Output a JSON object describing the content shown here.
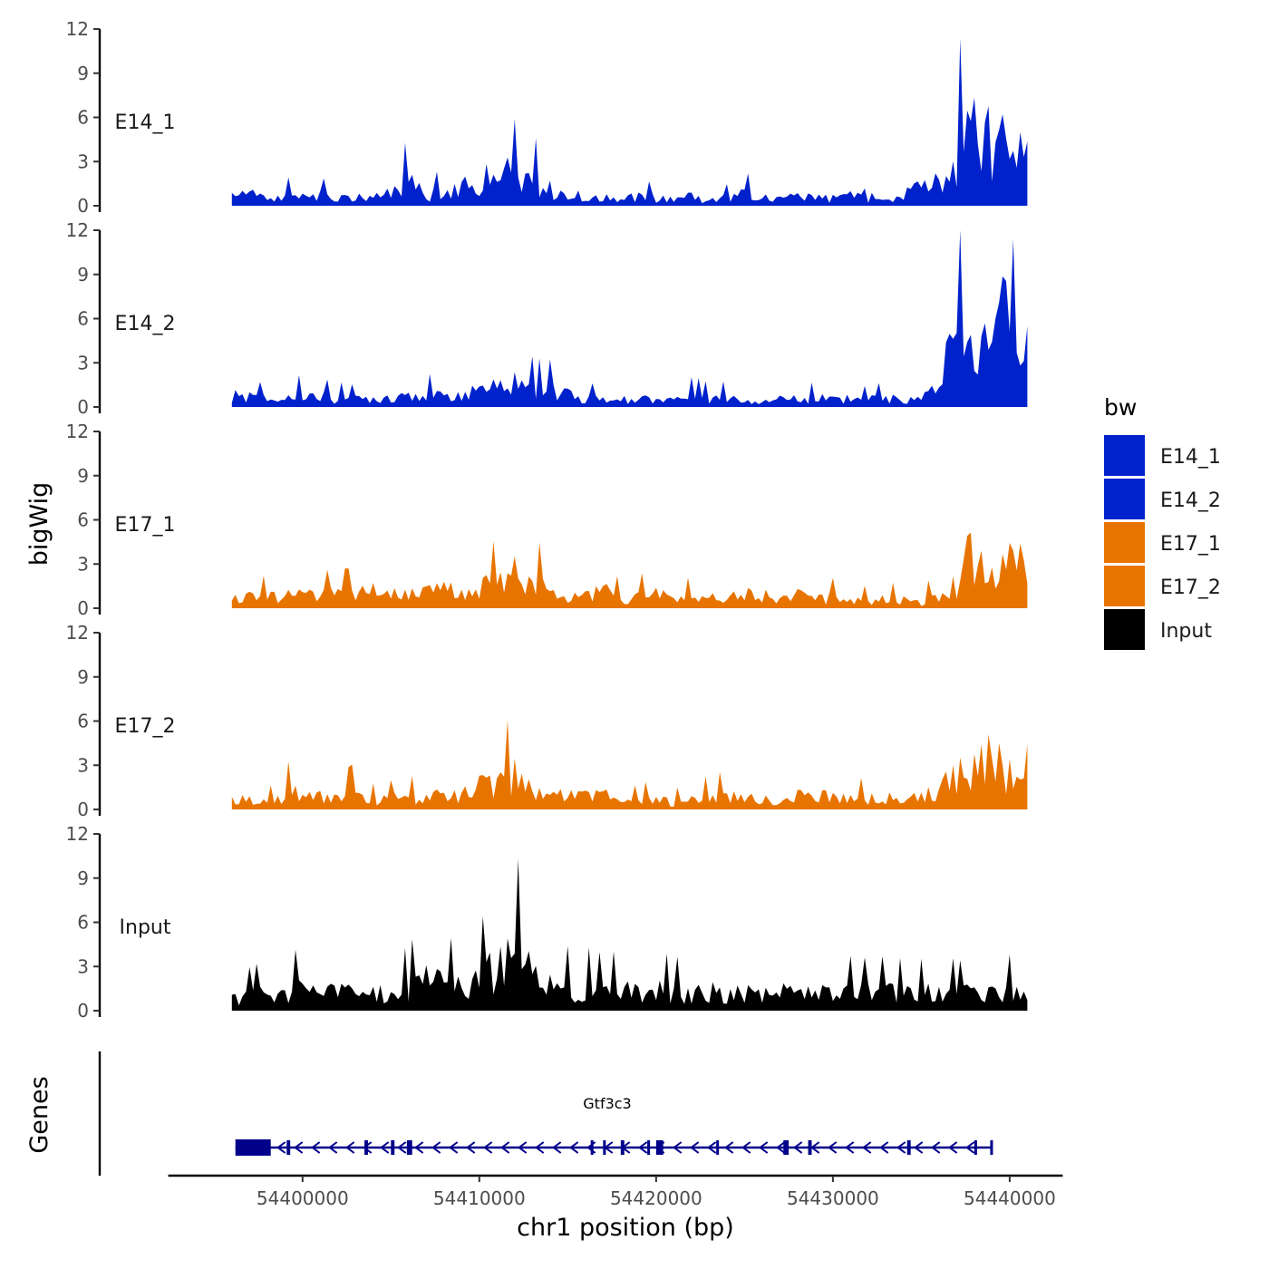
{
  "chart_data": {
    "type": "area",
    "xlabel": "chr1 position (bp)",
    "ylabel": "bigWig",
    "xlim": [
      54392400,
      54443000
    ],
    "x_ticks": [
      "54400000",
      "54410000",
      "54420000",
      "54430000",
      "54440000"
    ],
    "ylim": [
      0,
      12
    ],
    "y_ticks": [
      "0",
      "3",
      "6",
      "9",
      "12"
    ],
    "legend_title": "bw",
    "tracks": [
      {
        "name": "E14_1",
        "color": "#0022CC",
        "x": [
          54396000,
          54397000,
          54398000,
          54399000,
          54400000,
          54401000,
          54402000,
          54403000,
          54404000,
          54405000,
          54406000,
          54407000,
          54408000,
          54409000,
          54410000,
          54411000,
          54412000,
          54413000,
          54414000,
          54415000,
          54416000,
          54417000,
          54418000,
          54419000,
          54420000,
          54421000,
          54422000,
          54423000,
          54424000,
          54425000,
          54426000,
          54427000,
          54428000,
          54429000,
          54430000,
          54431000,
          54432000,
          54433000,
          54434000,
          54435000,
          54436000,
          54437000,
          54438000,
          54439000,
          54440000,
          54441000
        ],
        "y": [
          0.9,
          0.8,
          0.6,
          0.7,
          0.6,
          0.7,
          0.5,
          0.6,
          0.6,
          0.9,
          1.6,
          0.7,
          0.9,
          1.3,
          1.5,
          2.4,
          2.0,
          1.7,
          1.1,
          0.8,
          0.6,
          0.5,
          0.6,
          0.7,
          0.5,
          0.5,
          0.6,
          0.4,
          0.5,
          0.8,
          0.5,
          0.5,
          0.6,
          0.5,
          0.5,
          0.8,
          0.3,
          0.3,
          0.8,
          1.2,
          1.6,
          3.6,
          5.5,
          4.2,
          4.6,
          3.8
        ]
      },
      {
        "name": "E14_2",
        "color": "#0022CC",
        "x": [
          54396000,
          54397000,
          54398000,
          54399000,
          54400000,
          54401000,
          54402000,
          54403000,
          54404000,
          54405000,
          54406000,
          54407000,
          54408000,
          54409000,
          54410000,
          54411000,
          54412000,
          54413000,
          54414000,
          54415000,
          54416000,
          54417000,
          54418000,
          54419000,
          54420000,
          54421000,
          54422000,
          54423000,
          54424000,
          54425000,
          54426000,
          54427000,
          54428000,
          54429000,
          54430000,
          54431000,
          54432000,
          54433000,
          54434000,
          54435000,
          54436000,
          54437000,
          54438000,
          54439000,
          54440000,
          54441000
        ],
        "y": [
          0.8,
          0.7,
          0.5,
          0.6,
          0.8,
          0.7,
          0.6,
          0.5,
          0.6,
          0.8,
          0.9,
          0.8,
          0.7,
          0.9,
          1.5,
          1.2,
          1.6,
          1.2,
          1.1,
          0.9,
          0.5,
          0.6,
          0.5,
          0.6,
          0.6,
          0.5,
          0.7,
          0.6,
          0.6,
          0.5,
          0.5,
          0.6,
          0.5,
          0.6,
          0.7,
          0.5,
          0.5,
          0.6,
          0.5,
          0.5,
          1.6,
          4.8,
          3.9,
          3.7,
          8.5,
          4.5
        ]
      },
      {
        "name": "E17_1",
        "color": "#E87400",
        "x": [
          54396000,
          54397000,
          54398000,
          54399000,
          54400000,
          54401000,
          54402000,
          54403000,
          54404000,
          54405000,
          54406000,
          54407000,
          54408000,
          54409000,
          54410000,
          54411000,
          54412000,
          54413000,
          54414000,
          54415000,
          54416000,
          54417000,
          54418000,
          54419000,
          54420000,
          54421000,
          54422000,
          54423000,
          54424000,
          54425000,
          54426000,
          54427000,
          54428000,
          54429000,
          54430000,
          54431000,
          54432000,
          54433000,
          54434000,
          54435000,
          54436000,
          54437000,
          54438000,
          54439000,
          54440000,
          54441000
        ],
        "y": [
          0.5,
          1.0,
          0.7,
          0.8,
          0.9,
          0.9,
          0.9,
          1.0,
          1.2,
          1.1,
          1.2,
          1.0,
          1.3,
          1.1,
          1.4,
          1.6,
          2.4,
          1.8,
          1.1,
          0.9,
          0.9,
          1.3,
          0.6,
          0.8,
          1.0,
          0.8,
          0.7,
          0.8,
          0.8,
          1.1,
          1.0,
          0.6,
          0.9,
          0.6,
          0.7,
          0.6,
          0.5,
          0.6,
          0.6,
          0.4,
          1.0,
          1.6,
          4.2,
          2.0,
          3.8,
          2.6
        ]
      },
      {
        "name": "E17_2",
        "color": "#E87400",
        "x": [
          54396000,
          54397000,
          54398000,
          54399000,
          54400000,
          54401000,
          54402000,
          54403000,
          54404000,
          54405000,
          54406000,
          54407000,
          54408000,
          54409000,
          54410000,
          54411000,
          54412000,
          54413000,
          54414000,
          54415000,
          54416000,
          54417000,
          54418000,
          54419000,
          54420000,
          54421000,
          54422000,
          54423000,
          54424000,
          54425000,
          54426000,
          54427000,
          54428000,
          54429000,
          54430000,
          54431000,
          54432000,
          54433000,
          54434000,
          54435000,
          54436000,
          54437000,
          54438000,
          54439000,
          54440000,
          54441000
        ],
        "y": [
          0.8,
          0.7,
          0.4,
          1.2,
          1.0,
          0.9,
          0.9,
          1.1,
          0.6,
          0.7,
          0.8,
          0.8,
          1.0,
          0.9,
          1.5,
          1.7,
          2.3,
          1.9,
          1.2,
          1.0,
          0.9,
          1.0,
          0.4,
          0.6,
          0.7,
          0.5,
          0.6,
          0.8,
          0.9,
          0.7,
          0.7,
          0.6,
          0.9,
          0.8,
          0.9,
          0.7,
          0.8,
          0.9,
          0.8,
          0.8,
          1.4,
          2.2,
          2.6,
          3.6,
          2.4,
          1.5
        ]
      },
      {
        "name": "Input",
        "color": "#000000",
        "x": [
          54396000,
          54397000,
          54398000,
          54399000,
          54400000,
          54401000,
          54402000,
          54403000,
          54404000,
          54405000,
          54406000,
          54407000,
          54408000,
          54409000,
          54410000,
          54411000,
          54412000,
          54413000,
          54414000,
          54415000,
          54416000,
          54417000,
          54418000,
          54419000,
          54420000,
          54421000,
          54422000,
          54423000,
          54424000,
          54425000,
          54426000,
          54427000,
          54428000,
          54429000,
          54430000,
          54431000,
          54432000,
          54433000,
          54434000,
          54435000,
          54436000,
          54437000,
          54438000,
          54439000,
          54440000,
          54441000
        ],
        "y": [
          0.8,
          1.0,
          1.3,
          1.4,
          1.5,
          1.3,
          1.2,
          1.2,
          1.2,
          1.0,
          1.6,
          2.0,
          1.8,
          1.5,
          2.0,
          3.2,
          3.8,
          2.4,
          1.8,
          1.5,
          1.5,
          1.3,
          1.4,
          1.3,
          1.4,
          1.3,
          1.2,
          1.3,
          1.2,
          1.4,
          1.2,
          1.3,
          1.2,
          1.2,
          1.1,
          1.3,
          1.2,
          1.3,
          1.2,
          1.2,
          1.3,
          1.2,
          1.1,
          1.2,
          1.3,
          1.0
        ]
      }
    ],
    "gene": {
      "name": "Gtf3c3",
      "strand": "-",
      "start": 54396200,
      "end": 54439000,
      "exons": [
        [
          54396200,
          54398200
        ],
        [
          54399100,
          54399300
        ],
        [
          54403500,
          54403700
        ],
        [
          54405000,
          54405200
        ],
        [
          54405900,
          54406200
        ],
        [
          54416300,
          54416400
        ],
        [
          54417000,
          54417100
        ],
        [
          54418000,
          54418200
        ],
        [
          54419500,
          54419600
        ],
        [
          54420000,
          54420400
        ],
        [
          54423400,
          54423500
        ],
        [
          54427200,
          54427500
        ],
        [
          54428600,
          54428800
        ],
        [
          54434200,
          54434400
        ],
        [
          54438000,
          54438100
        ],
        [
          54438900,
          54439000
        ]
      ]
    },
    "genes_axis_label": "Genes"
  }
}
